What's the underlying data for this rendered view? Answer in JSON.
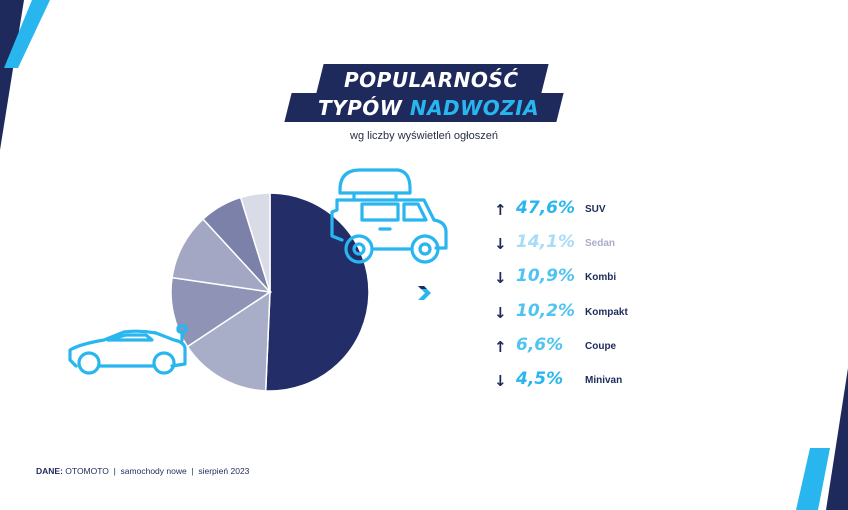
{
  "title": {
    "line1": "POPULARNOŚĆ",
    "line2_part1": "TYPÓW",
    "line2_part2": "NADWOZIA"
  },
  "subtitle": "wg liczby wyświetleń ogłoszeń",
  "chart_data": {
    "type": "pie",
    "categories": [
      "SUV",
      "Sedan",
      "Kombi",
      "Kompakt",
      "Coupe",
      "Minivan"
    ],
    "values": [
      47.6,
      14.1,
      10.9,
      10.2,
      6.6,
      4.5
    ],
    "value_labels": [
      "47,6%",
      "14,1%",
      "10,9%",
      "10,2%",
      "6,6%",
      "4,5%"
    ],
    "trend": [
      "up",
      "down",
      "down",
      "down",
      "up",
      "down"
    ],
    "slice_colors": [
      "#232e69",
      "#a9aec8",
      "#8f94b7",
      "#a3a7c4",
      "#7b81a8",
      "#d9dbe7"
    ],
    "value_colors": [
      "#29b6ef",
      "#a6ddf6",
      "#4fc3f1",
      "#4fc3f1",
      "#4fc3f1",
      "#29b6ef"
    ],
    "category_colors": [
      "#1f2a5c",
      "#a9aec8",
      "#1f2a5c",
      "#1f2a5c",
      "#1f2a5c",
      "#1f2a5c"
    ]
  },
  "footer": {
    "label": "DANE:",
    "text": "OTOMOTO  |  samochody nowe  |  sierpień 2023"
  },
  "colors": {
    "navy": "#1f2a5c",
    "accent": "#29b6ef"
  },
  "icons": [
    "suv-roofbox-icon",
    "sports-car-icon",
    "chevron-mark-icon"
  ]
}
